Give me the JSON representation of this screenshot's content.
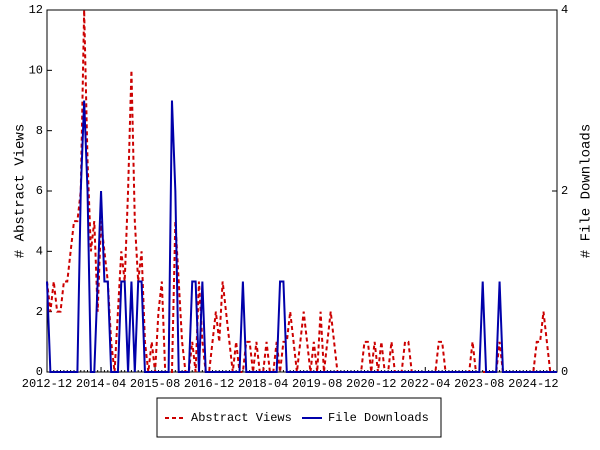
{
  "chart_data": {
    "type": "line",
    "y_label": "# Abstract Views",
    "y2_label": "# File Downloads",
    "categories": [
      "2012-12",
      null,
      null,
      null,
      null,
      null,
      null,
      null,
      null,
      null,
      null,
      null,
      null,
      null,
      null,
      null,
      "2014-04",
      null,
      null,
      null,
      null,
      null,
      null,
      null,
      null,
      null,
      null,
      null,
      null,
      null,
      null,
      null,
      "2015-08",
      null,
      null,
      null,
      null,
      null,
      null,
      null,
      null,
      null,
      null,
      null,
      null,
      null,
      null,
      null,
      "2016-12",
      null,
      null,
      null,
      null,
      null,
      null,
      null,
      null,
      null,
      null,
      null,
      null,
      null,
      null,
      null,
      "2018-04",
      null,
      null,
      null,
      null,
      null,
      null,
      null,
      null,
      null,
      null,
      null,
      null,
      null,
      null,
      null,
      "2019-08",
      null,
      null,
      null,
      null,
      null,
      null,
      null,
      null,
      null,
      null,
      null,
      null,
      null,
      null,
      null,
      "2020-12",
      null,
      null,
      null,
      null,
      null,
      null,
      null,
      null,
      null,
      null,
      null,
      null,
      null,
      null,
      null,
      "2022-04",
      null,
      null,
      null,
      null,
      null,
      null,
      null,
      null,
      null,
      null,
      null,
      null,
      null,
      null,
      null,
      "2023-08",
      null,
      null,
      null,
      null,
      null,
      null,
      null,
      null,
      null,
      null,
      null,
      null,
      null,
      null,
      null,
      "2024-12",
      null,
      null,
      null,
      null,
      null,
      null,
      null
    ],
    "series": [
      {
        "name": "Abstract Views",
        "color": "#cc0000",
        "dashed": true,
        "values": [
          3,
          2,
          3,
          2,
          2,
          3,
          3,
          4,
          5,
          5,
          6,
          12,
          7,
          4,
          5,
          2,
          5,
          4,
          3,
          1,
          0,
          2,
          4,
          3,
          6,
          10,
          5,
          3,
          4,
          1,
          0,
          1,
          0,
          2,
          3,
          0,
          0,
          0,
          5,
          3,
          1,
          0,
          0,
          1,
          0,
          3,
          1,
          0,
          0,
          1,
          2,
          1,
          3,
          2,
          1,
          0,
          1,
          0,
          0,
          1,
          1,
          0,
          1,
          0,
          0,
          1,
          0,
          0,
          1,
          0,
          1,
          1,
          2,
          1,
          0,
          1,
          2,
          1,
          0,
          1,
          0,
          2,
          0,
          1,
          2,
          1,
          0,
          0,
          0,
          0,
          0,
          0,
          0,
          0,
          1,
          1,
          0,
          1,
          0,
          1,
          0,
          0,
          1,
          0,
          0,
          0,
          1,
          1,
          0,
          0,
          0,
          0,
          0,
          0,
          0,
          0,
          1,
          1,
          0,
          0,
          0,
          0,
          0,
          0,
          0,
          0,
          1,
          0,
          0,
          0,
          0,
          0,
          0,
          0,
          1,
          0,
          0,
          0,
          0,
          0,
          0,
          0,
          0,
          0,
          0,
          1,
          1,
          2,
          1,
          0,
          0,
          0
        ]
      },
      {
        "name": "File Downloads",
        "color": "#0000aa",
        "axis": "y2",
        "values": [
          1,
          0,
          0,
          0,
          0,
          0,
          0,
          0,
          0,
          0,
          2,
          3,
          2,
          0,
          0,
          1,
          2,
          1,
          1,
          0,
          0,
          0,
          1,
          1,
          0,
          1,
          0,
          1,
          1,
          0,
          0,
          0,
          0,
          0,
          0,
          0,
          0,
          3,
          2,
          0,
          0,
          0,
          0,
          1,
          1,
          0,
          1,
          0,
          0,
          0,
          0,
          0,
          0,
          0,
          0,
          0,
          0,
          0,
          1,
          0,
          0,
          0,
          0,
          0,
          0,
          0,
          0,
          0,
          0,
          1,
          1,
          0,
          0,
          0,
          0,
          0,
          0,
          0,
          0,
          0,
          0,
          0,
          0,
          0,
          0,
          0,
          0,
          0,
          0,
          0,
          0,
          0,
          0,
          0,
          0,
          0,
          0,
          0,
          0,
          0,
          0,
          0,
          0,
          0,
          0,
          0,
          0,
          0,
          0,
          0,
          0,
          0,
          0,
          0,
          0,
          0,
          0,
          0,
          0,
          0,
          0,
          0,
          0,
          0,
          0,
          0,
          0,
          0,
          0,
          1,
          0,
          0,
          0,
          0,
          1,
          0,
          0,
          0,
          0,
          0,
          0,
          0,
          0,
          0,
          0,
          0,
          0,
          0,
          0,
          0,
          0,
          0
        ]
      }
    ],
    "ylim": [
      0,
      12
    ],
    "yticks": [
      0,
      2,
      4,
      6,
      8,
      10,
      12
    ],
    "y2lim": [
      0,
      4
    ],
    "y2ticks": [
      0,
      2,
      4
    ],
    "legend": "bottom",
    "grid": false
  }
}
